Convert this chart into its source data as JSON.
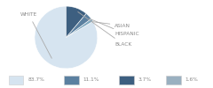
{
  "labels": [
    "WHITE",
    "ASIAN",
    "HISPANIC",
    "BLACK"
  ],
  "values": [
    83.7,
    1.6,
    3.7,
    11.1
  ],
  "colors": [
    "#d6e4f0",
    "#7fa8c0",
    "#5b80a0",
    "#3d5f80"
  ],
  "legend_colors": [
    "#d6e4f0",
    "#5b80a0",
    "#3d5f80",
    "#9ab0c0"
  ],
  "legend_labels": [
    "83.7%",
    "11.1%",
    "3.7%",
    "1.6%"
  ],
  "startangle": 90,
  "background_color": "#ffffff",
  "text_color": "#888888",
  "arrow_color": "#aaaaaa"
}
